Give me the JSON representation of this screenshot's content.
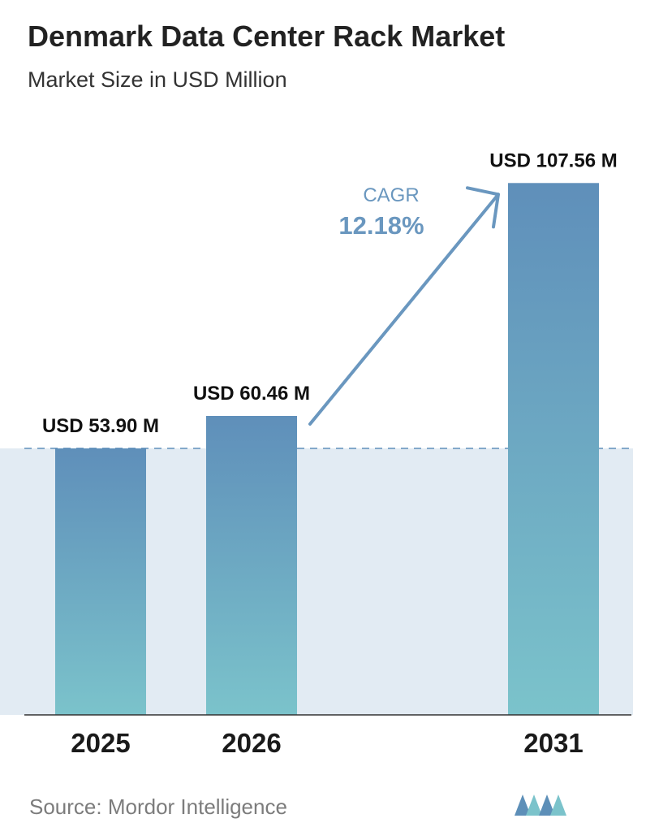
{
  "title": "Denmark Data Center Rack Market",
  "subtitle": "Market Size in USD Million",
  "chart_data": {
    "type": "bar",
    "categories": [
      "2025",
      "2026",
      "2031"
    ],
    "values": [
      53.9,
      60.46,
      107.56
    ],
    "value_labels": [
      "USD 53.90 M",
      "USD 60.46 M",
      "USD 107.56 M"
    ],
    "ylim": [
      0,
      115
    ],
    "xlabel": "",
    "ylabel": "",
    "grid": false,
    "annotation": {
      "label": "CAGR",
      "value": "12.18%"
    },
    "bar_gradient": [
      "#5f8fba",
      "#7bc3cb"
    ]
  },
  "source": "Source:  Mordor Intelligence",
  "logo_icon": "mordor-intelligence-logo-icon",
  "colors": {
    "accent": "#5f8fba",
    "band": "#e2ebf3",
    "dash": "#5f8fba"
  }
}
